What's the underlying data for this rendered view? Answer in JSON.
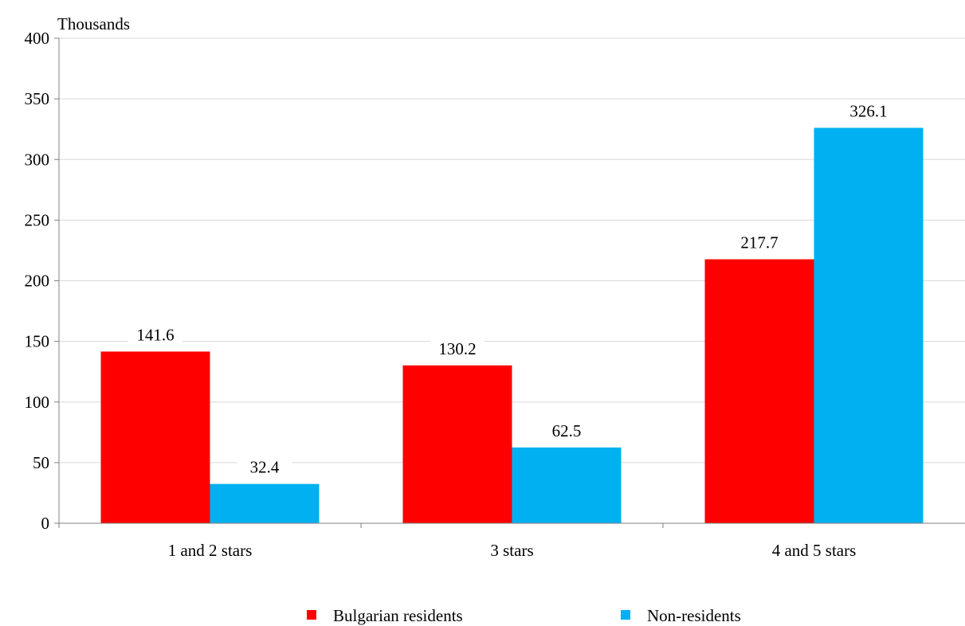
{
  "chart_data": {
    "type": "bar",
    "ylabel": "Thousands",
    "categories": [
      "1 and 2 stars",
      "3 stars",
      "4 and 5 stars"
    ],
    "series": [
      {
        "name": "Bulgarian residents",
        "color": "#ff0000",
        "values": [
          141.6,
          130.2,
          217.7
        ]
      },
      {
        "name": "Non-residents",
        "color": "#00b0f0",
        "values": [
          32.4,
          62.5,
          326.1
        ]
      }
    ],
    "ylim": [
      0,
      400
    ],
    "yticks": [
      "0",
      "50",
      "100",
      "150",
      "200",
      "250",
      "300",
      "350",
      "400"
    ],
    "data_labels": [
      [
        "141.6",
        "130.2",
        "217.7"
      ],
      [
        "32.4",
        "62.5",
        "326.1"
      ]
    ],
    "grid": true,
    "legend_position": "bottom"
  }
}
